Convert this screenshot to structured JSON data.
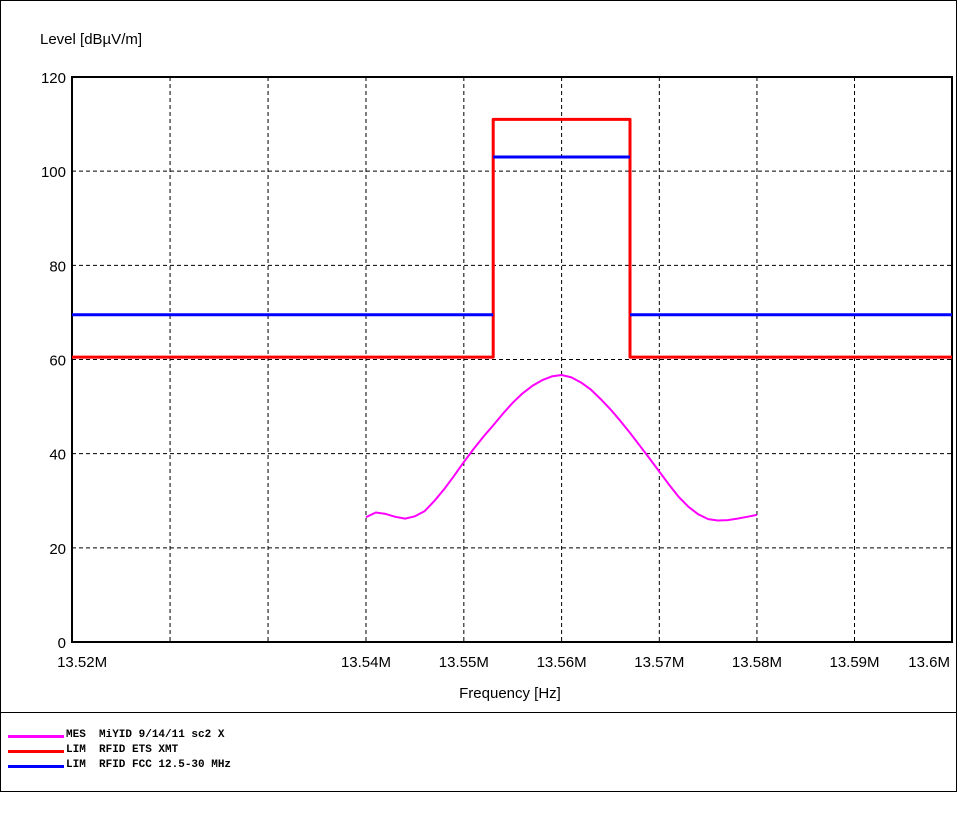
{
  "chart_data": {
    "type": "line",
    "ylabel": "Level [dBµV/m]",
    "xlabel": "Frequency [Hz]",
    "ylim": [
      0,
      120
    ],
    "xlim": [
      13.51,
      13.6
    ],
    "x_scale": "log",
    "grid": true,
    "y_ticks": [
      {
        "value": 0,
        "label": "0"
      },
      {
        "value": 20,
        "label": "20"
      },
      {
        "value": 40,
        "label": "40"
      },
      {
        "value": 60,
        "label": "60"
      },
      {
        "value": 80,
        "label": "80"
      },
      {
        "value": 100,
        "label": "100"
      },
      {
        "value": 120,
        "label": "120"
      }
    ],
    "x_ticks": [
      {
        "value": 13.52,
        "label": "13.52M"
      },
      {
        "value": 13.54,
        "label": "13.54M"
      },
      {
        "value": 13.55,
        "label": "13.55M"
      },
      {
        "value": 13.56,
        "label": "13.56M"
      },
      {
        "value": 13.57,
        "label": "13.57M"
      },
      {
        "value": 13.58,
        "label": "13.58M"
      },
      {
        "value": 13.59,
        "label": "13.59M"
      },
      {
        "value": 13.6,
        "label": "13.6M"
      }
    ],
    "x_gridlines": [
      13.52,
      13.53,
      13.54,
      13.55,
      13.56,
      13.57,
      13.58,
      13.59
    ],
    "series": [
      {
        "name": "MES MiYID 9/14/11 sc2 X",
        "color": "#ff00ff",
        "x": [
          13.54,
          13.541,
          13.542,
          13.543,
          13.544,
          13.545,
          13.546,
          13.547,
          13.548,
          13.549,
          13.55,
          13.551,
          13.552,
          13.553,
          13.554,
          13.555,
          13.556,
          13.557,
          13.558,
          13.559,
          13.56,
          13.561,
          13.562,
          13.563,
          13.564,
          13.565,
          13.566,
          13.567,
          13.568,
          13.569,
          13.57,
          13.571,
          13.572,
          13.573,
          13.574,
          13.575,
          13.576,
          13.577,
          13.578,
          13.579,
          13.58
        ],
        "y": [
          26.5,
          27.5,
          27.2,
          26.6,
          26.2,
          26.7,
          27.8,
          30,
          32.5,
          35.3,
          38.2,
          41,
          43.6,
          46,
          48.5,
          50.8,
          52.8,
          54.4,
          55.6,
          56.4,
          56.7,
          56.2,
          55.1,
          53.6,
          51.6,
          49.4,
          47,
          44.4,
          41.7,
          39,
          36.2,
          33.4,
          30.8,
          28.7,
          27.1,
          26.1,
          25.8,
          25.9,
          26.2,
          26.6,
          27
        ]
      },
      {
        "name": "LIM RFID ETS XMT",
        "color": "#ff0000",
        "x": [
          13.51,
          13.553,
          13.553,
          13.567,
          13.567,
          13.6
        ],
        "y": [
          60.5,
          60.5,
          111,
          111,
          60.5,
          60.5
        ]
      },
      {
        "name": "LIM RFID FCC 12.5-30 MHz",
        "color": "#0000ff",
        "segments": [
          {
            "x": [
              13.51,
              13.553
            ],
            "y": [
              69.5,
              69.5
            ]
          },
          {
            "x": [
              13.553,
              13.567
            ],
            "y": [
              103,
              103
            ]
          },
          {
            "x": [
              13.567,
              13.6
            ],
            "y": [
              69.5,
              69.5
            ]
          }
        ]
      }
    ]
  },
  "legend": [
    {
      "text": "MES  MiYID 9/14/11 sc2 X",
      "color": "#ff00ff"
    },
    {
      "text": "LIM  RFID ETS XMT",
      "color": "#ff0000"
    },
    {
      "text": "LIM  RFID FCC 12.5-30 MHz",
      "color": "#0000ff"
    }
  ]
}
